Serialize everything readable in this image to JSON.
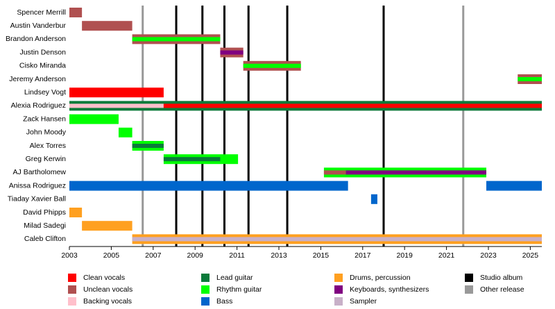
{
  "chart_data": {
    "type": "timeline",
    "xlim": [
      2003,
      2025.55
    ],
    "xticks": [
      2003,
      2005,
      2007,
      2009,
      2011,
      2013,
      2015,
      2017,
      2019,
      2021,
      2023,
      2025
    ],
    "roles": [
      {
        "name": "Clean vocals",
        "color": "#ff0000"
      },
      {
        "name": "Unclean vocals",
        "color": "#b05050"
      },
      {
        "name": "Backing vocals",
        "color": "#ffc0cb"
      },
      {
        "name": "Lead guitar",
        "color": "#0b7a3a"
      },
      {
        "name": "Rhythm guitar",
        "color": "#00ff00"
      },
      {
        "name": "Bass",
        "color": "#0066cc"
      },
      {
        "name": "Drums, percussion",
        "color": "#ffa020"
      },
      {
        "name": "Keyboards, synthesizers",
        "color": "#800080"
      },
      {
        "name": "Sampler",
        "color": "#c8b0c8"
      }
    ],
    "release_types": [
      {
        "name": "Studio album",
        "color": "#000000"
      },
      {
        "name": "Other release",
        "color": "#999999"
      }
    ],
    "releases": [
      {
        "year": 2006.5,
        "kind": "Other release"
      },
      {
        "year": 2008.1,
        "kind": "Studio album"
      },
      {
        "year": 2009.35,
        "kind": "Studio album"
      },
      {
        "year": 2010.4,
        "kind": "Studio album"
      },
      {
        "year": 2011.55,
        "kind": "Studio album"
      },
      {
        "year": 2013.4,
        "kind": "Studio album"
      },
      {
        "year": 2018.0,
        "kind": "Studio album"
      },
      {
        "year": 2021.8,
        "kind": "Other release"
      }
    ],
    "members": [
      {
        "name": "Spencer Merrill",
        "periods": [
          {
            "start": 2003,
            "end": 2003.6,
            "role": "Unclean vocals",
            "inner": []
          }
        ]
      },
      {
        "name": "Austin Vanderbur",
        "periods": [
          {
            "start": 2003.6,
            "end": 2006,
            "role": "Unclean vocals",
            "inner": []
          }
        ]
      },
      {
        "name": "Brandon Anderson",
        "periods": [
          {
            "start": 2006,
            "end": 2010.2,
            "role": "Unclean vocals",
            "inner": [
              {
                "start": 2006,
                "end": 2010.2,
                "role": "Rhythm guitar"
              }
            ]
          }
        ]
      },
      {
        "name": "Justin Denson",
        "periods": [
          {
            "start": 2010.2,
            "end": 2011.3,
            "role": "Unclean vocals",
            "inner": [
              {
                "start": 2010.2,
                "end": 2011.3,
                "role": "Keyboards, synthesizers"
              }
            ]
          }
        ]
      },
      {
        "name": "Cisko Miranda",
        "periods": [
          {
            "start": 2011.3,
            "end": 2014.05,
            "role": "Unclean vocals",
            "inner": [
              {
                "start": 2011.3,
                "end": 2014.05,
                "role": "Rhythm guitar"
              }
            ]
          }
        ]
      },
      {
        "name": "Jeremy Anderson",
        "periods": [
          {
            "start": 2024.4,
            "end": 2025.55,
            "role": "Unclean vocals",
            "inner": [
              {
                "start": 2024.4,
                "end": 2025.55,
                "role": "Rhythm guitar"
              }
            ]
          }
        ]
      },
      {
        "name": "Lindsey Vogt",
        "periods": [
          {
            "start": 2003,
            "end": 2007.5,
            "role": "Clean vocals",
            "inner": []
          }
        ]
      },
      {
        "name": "Alexia Rodriguez",
        "periods": [
          {
            "start": 2003,
            "end": 2025.55,
            "role": "Lead guitar",
            "inner": [
              {
                "start": 2003,
                "end": 2007.5,
                "role": "Backing vocals"
              },
              {
                "start": 2007.5,
                "end": 2025.55,
                "role": "Clean vocals"
              }
            ]
          }
        ]
      },
      {
        "name": "Zack Hansen",
        "periods": [
          {
            "start": 2003,
            "end": 2005.35,
            "role": "Rhythm guitar",
            "inner": []
          }
        ]
      },
      {
        "name": "John Moody",
        "periods": [
          {
            "start": 2005.35,
            "end": 2006,
            "role": "Rhythm guitar",
            "inner": []
          }
        ]
      },
      {
        "name": "Alex Torres",
        "periods": [
          {
            "start": 2006,
            "end": 2007.5,
            "role": "Rhythm guitar",
            "inner": [
              {
                "start": 2006,
                "end": 2007.5,
                "role": "Lead guitar"
              }
            ]
          }
        ]
      },
      {
        "name": "Greg Kerwin",
        "periods": [
          {
            "start": 2007.5,
            "end": 2011.05,
            "role": "Rhythm guitar",
            "inner": [
              {
                "start": 2007.5,
                "end": 2010.2,
                "role": "Lead guitar"
              }
            ]
          }
        ]
      },
      {
        "name": "AJ Bartholomew",
        "periods": [
          {
            "start": 2015.15,
            "end": 2022.9,
            "role": "Rhythm guitar",
            "inner": [
              {
                "start": 2015.15,
                "end": 2016.2,
                "role": "Unclean vocals"
              },
              {
                "start": 2016.2,
                "end": 2022.9,
                "role": "Keyboards, synthesizers"
              }
            ]
          }
        ]
      },
      {
        "name": "Anissa Rodriguez",
        "periods": [
          {
            "start": 2003,
            "end": 2016.3,
            "role": "Bass",
            "inner": []
          },
          {
            "start": 2022.9,
            "end": 2025.55,
            "role": "Bass",
            "inner": []
          }
        ]
      },
      {
        "name": "Tiaday Xavier Ball",
        "periods": [
          {
            "start": 2017.4,
            "end": 2017.7,
            "role": "Bass",
            "inner": []
          }
        ]
      },
      {
        "name": "David Phipps",
        "periods": [
          {
            "start": 2003,
            "end": 2003.6,
            "role": "Drums, percussion",
            "inner": []
          }
        ]
      },
      {
        "name": "Milad Sadegi",
        "periods": [
          {
            "start": 2003.6,
            "end": 2006,
            "role": "Drums, percussion",
            "inner": []
          }
        ]
      },
      {
        "name": "Caleb Clifton",
        "periods": [
          {
            "start": 2006,
            "end": 2025.55,
            "role": "Drums, percussion",
            "inner": [
              {
                "start": 2006,
                "end": 2025.55,
                "role": "Sampler"
              }
            ]
          }
        ]
      }
    ]
  }
}
